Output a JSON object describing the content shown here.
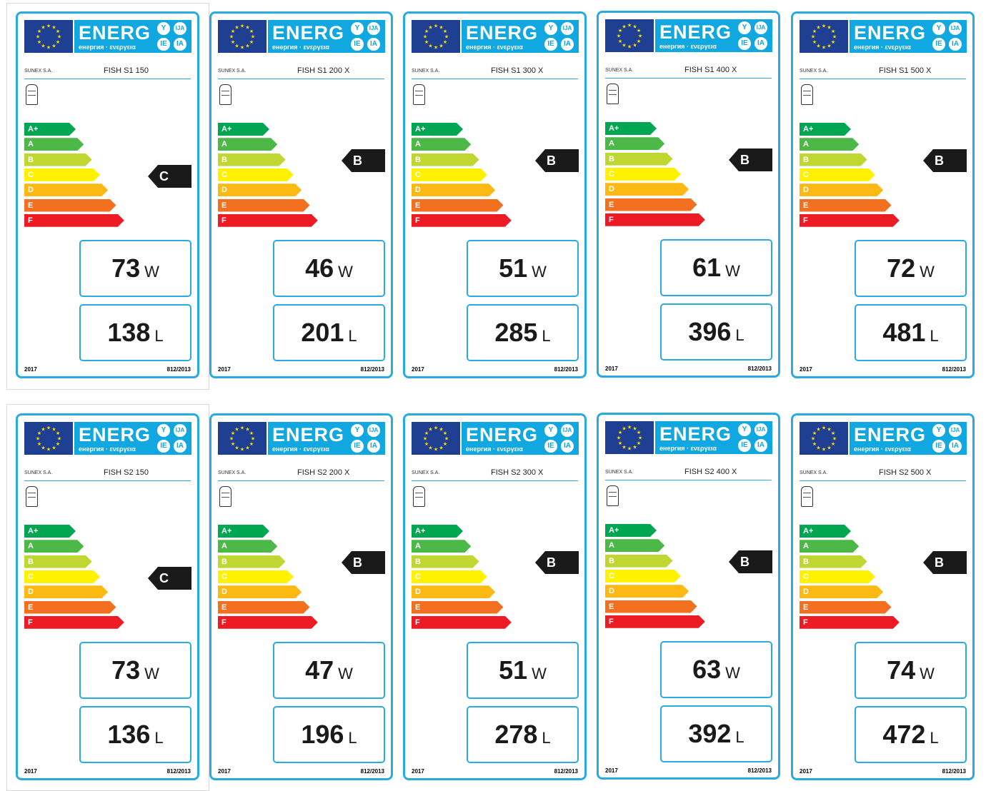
{
  "header": {
    "energ": "ENERG",
    "subtitle": "енергия · ενεργεια",
    "badges": [
      "Y",
      "IJA",
      "IE",
      "IA"
    ]
  },
  "supplier": "SUNEX S.A.",
  "year": "2017",
  "regulation": "812/2013",
  "units": {
    "power": "W",
    "volume": "L"
  },
  "scale": [
    {
      "label": "A+",
      "color": "#00a651"
    },
    {
      "label": "A",
      "color": "#4cb848"
    },
    {
      "label": "B",
      "color": "#bfd730"
    },
    {
      "label": "C",
      "color": "#fff200"
    },
    {
      "label": "D",
      "color": "#fdb913"
    },
    {
      "label": "E",
      "color": "#f37021"
    },
    {
      "label": "F",
      "color": "#ed1c24"
    }
  ],
  "labels": [
    {
      "model": "FISH S1 150",
      "class": "C",
      "watts": "73",
      "liters": "138"
    },
    {
      "model": "FISH S1 200 X",
      "class": "B",
      "watts": "46",
      "liters": "201"
    },
    {
      "model": "FISH S1 300 X",
      "class": "B",
      "watts": "51",
      "liters": "285"
    },
    {
      "model": "FISH S1 400 X",
      "class": "B",
      "watts": "61",
      "liters": "396"
    },
    {
      "model": "FISH S1 500 X",
      "class": "B",
      "watts": "72",
      "liters": "481"
    },
    {
      "model": "FISH S2 150",
      "class": "C",
      "watts": "73",
      "liters": "136"
    },
    {
      "model": "FISH S2 200 X",
      "class": "B",
      "watts": "47",
      "liters": "196"
    },
    {
      "model": "FISH S2 300 X",
      "class": "B",
      "watts": "51",
      "liters": "278"
    },
    {
      "model": "FISH S2 400 X",
      "class": "B",
      "watts": "63",
      "liters": "392"
    },
    {
      "model": "FISH S2 500 X",
      "class": "B",
      "watts": "74",
      "liters": "472"
    }
  ]
}
